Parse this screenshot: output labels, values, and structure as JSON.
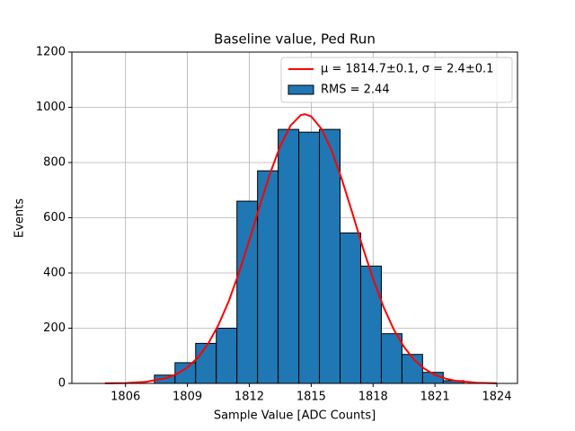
{
  "chart_data": {
    "type": "histogram",
    "title": "Baseline value, Ped Run",
    "x_label": "Sample Value [ADC Counts]",
    "y_label": "Events",
    "name": "RMS = 2.44",
    "color": "#1f77b4",
    "edgecolor": "#000000",
    "bins": [
      1807.4,
      1808.4,
      1809.4,
      1810.4,
      1811.4,
      1812.4,
      1813.4,
      1814.4,
      1815.4,
      1816.4,
      1817.4,
      1818.4,
      1819.4,
      1820.4,
      1821.4,
      1822.4
    ],
    "values": [
      30,
      75,
      145,
      200,
      660,
      770,
      920,
      910,
      920,
      545,
      425,
      180,
      105,
      40,
      10
    ],
    "fit": {
      "type": "line",
      "name": "μ = 1814.7±0.1, σ = 2.4±0.1",
      "color": "#ff0000",
      "x": [
        1805,
        1806,
        1807,
        1808,
        1808.5,
        1809,
        1809.5,
        1810,
        1810.5,
        1811,
        1811.5,
        1812,
        1812.5,
        1813,
        1813.5,
        1814,
        1814.5,
        1814.7,
        1815,
        1815.5,
        1816,
        1816.5,
        1817,
        1817.5,
        1818,
        1818.5,
        1819,
        1819.5,
        1820,
        1820.5,
        1821,
        1821.5,
        1822,
        1823,
        1824
      ],
      "values": [
        0.3,
        1.4,
        5.7,
        19.8,
        34.6,
        58,
        93,
        143,
        211,
        297,
        401,
        518,
        641,
        759,
        860,
        934,
        972,
        975,
        967,
        922,
        842,
        736,
        616,
        493,
        379,
        278,
        196,
        132,
        85,
        52.5,
        31,
        17.6,
        9.5,
        2.5,
        0.5
      ]
    },
    "xlim": [
      1803.4,
      1825.0
    ],
    "ylim": [
      0,
      1200
    ],
    "xticks": [
      1806,
      1809,
      1812,
      1815,
      1818,
      1821,
      1824
    ],
    "yticks": [
      0,
      200,
      400,
      600,
      800,
      1000,
      1200
    ],
    "grid": true,
    "legend": "upper right"
  }
}
